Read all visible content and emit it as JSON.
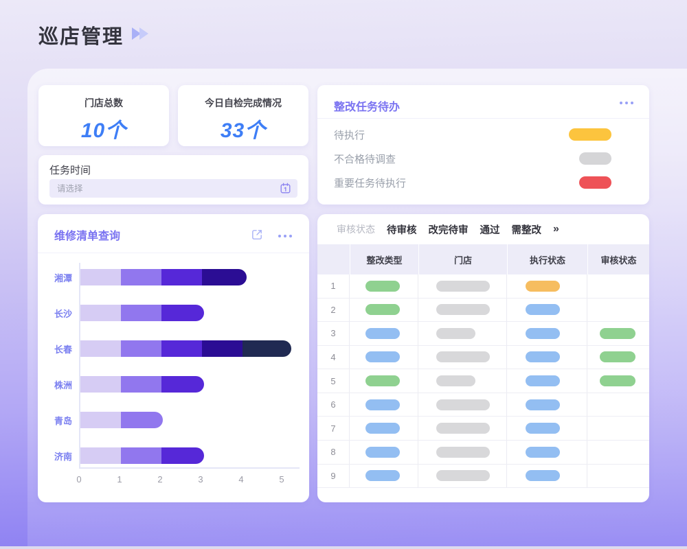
{
  "page": {
    "title": "巡店管理"
  },
  "stats": [
    {
      "label": "门店总数",
      "value": "10个"
    },
    {
      "label": "今日自检完成情况",
      "value": "33个"
    }
  ],
  "task_time": {
    "label": "任务时间",
    "placeholder": "请选择"
  },
  "todo": {
    "title": "整改任务待办",
    "items": [
      {
        "label": "待执行",
        "pill_color": "#fcc43e",
        "pill_width": 62
      },
      {
        "label": "不合格待调查",
        "pill_color": "#d5d5d7",
        "pill_width": 47
      },
      {
        "label": "重要任务待执行",
        "pill_color": "#ee5257",
        "pill_width": 47
      }
    ]
  },
  "repair_panel": {
    "title": "维修清单查询"
  },
  "chart_data": {
    "type": "bar",
    "orientation": "horizontal",
    "stacked": true,
    "title": "维修清单查询",
    "categories": [
      "湘潭",
      "长沙",
      "长春",
      "株洲",
      "青岛",
      "济南"
    ],
    "series_values": [
      [
        1,
        1,
        1,
        1.1
      ],
      [
        1,
        1,
        1.05
      ],
      [
        1,
        1,
        1,
        1,
        1.2
      ],
      [
        1,
        1,
        1.05
      ],
      [
        1,
        1.03
      ],
      [
        1,
        1,
        1.05
      ]
    ],
    "segment_colors": [
      "#d6ccf4",
      "#9177ee",
      "#5628d8",
      "#2b0d94",
      "#202a52"
    ],
    "xlabel": "",
    "ylabel": "",
    "xlim": [
      0,
      5
    ],
    "xticks": [
      "0",
      "1",
      "2",
      "3",
      "4",
      "5"
    ],
    "grid": false,
    "legend": false
  },
  "table": {
    "filter_label": "审核状态",
    "tabs": [
      "待审核",
      "改完待审",
      "通过",
      "需整改"
    ],
    "more_label": "»",
    "columns": [
      "",
      "整改类型",
      "门店",
      "执行状态",
      "审核状态"
    ],
    "pill_colors": {
      "green": "#8fd190",
      "blue": "#93bef2",
      "gray": "#d8d8da",
      "orange": "#f6bd60"
    },
    "rows": [
      {
        "num": "1",
        "type": "green",
        "store": "wide",
        "exec": "orange",
        "review": ""
      },
      {
        "num": "2",
        "type": "green",
        "store": "wide",
        "exec": "blue",
        "review": ""
      },
      {
        "num": "3",
        "type": "blue",
        "store": "narrow",
        "exec": "blue",
        "review": "green"
      },
      {
        "num": "4",
        "type": "blue",
        "store": "wide",
        "exec": "blue",
        "review": "green"
      },
      {
        "num": "5",
        "type": "green",
        "store": "narrow",
        "exec": "blue",
        "review": "green"
      },
      {
        "num": "6",
        "type": "blue",
        "store": "wide",
        "exec": "blue",
        "review": ""
      },
      {
        "num": "7",
        "type": "blue",
        "store": "wide",
        "exec": "blue",
        "review": ""
      },
      {
        "num": "8",
        "type": "blue",
        "store": "wide",
        "exec": "blue",
        "review": ""
      },
      {
        "num": "9",
        "type": "blue",
        "store": "wide",
        "exec": "blue",
        "review": ""
      }
    ]
  }
}
